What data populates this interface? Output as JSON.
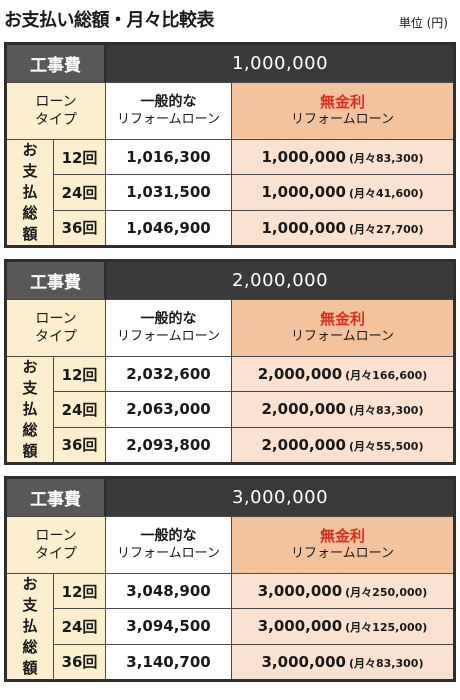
{
  "title": "お支払い総額・月々比較表",
  "unit": "単位 (円)",
  "labels": {
    "cost_label": "工事費",
    "type_line1": "ローン",
    "type_line2": "タイプ",
    "normal_line1": "一般的な",
    "normal_line2": "リフォームローン",
    "free_line1": "無金利",
    "free_line2": "リフォームローン",
    "total_chars": [
      "お",
      "支",
      "払",
      "総",
      "額"
    ]
  },
  "blocks": [
    {
      "cost": "1,000,000",
      "rows": [
        {
          "term": "12回",
          "normal": "1,016,300",
          "free": "1,000,000",
          "monthly": "(月々83,300)"
        },
        {
          "term": "24回",
          "normal": "1,031,500",
          "free": "1,000,000",
          "monthly": "(月々41,600)"
        },
        {
          "term": "36回",
          "normal": "1,046,900",
          "free": "1,000,000",
          "monthly": "(月々27,700)"
        }
      ]
    },
    {
      "cost": "2,000,000",
      "rows": [
        {
          "term": "12回",
          "normal": "2,032,600",
          "free": "2,000,000",
          "monthly": "(月々166,600)"
        },
        {
          "term": "24回",
          "normal": "2,063,000",
          "free": "2,000,000",
          "monthly": "(月々83,300)"
        },
        {
          "term": "36回",
          "normal": "2,093,800",
          "free": "2,000,000",
          "monthly": "(月々55,500)"
        }
      ]
    },
    {
      "cost": "3,000,000",
      "rows": [
        {
          "term": "12回",
          "normal": "3,048,900",
          "free": "3,000,000",
          "monthly": "(月々250,000)"
        },
        {
          "term": "24回",
          "normal": "3,094,500",
          "free": "3,000,000",
          "monthly": "(月々125,000)"
        },
        {
          "term": "36回",
          "normal": "3,140,700",
          "free": "3,000,000",
          "monthly": "(月々83,300)"
        }
      ]
    }
  ]
}
